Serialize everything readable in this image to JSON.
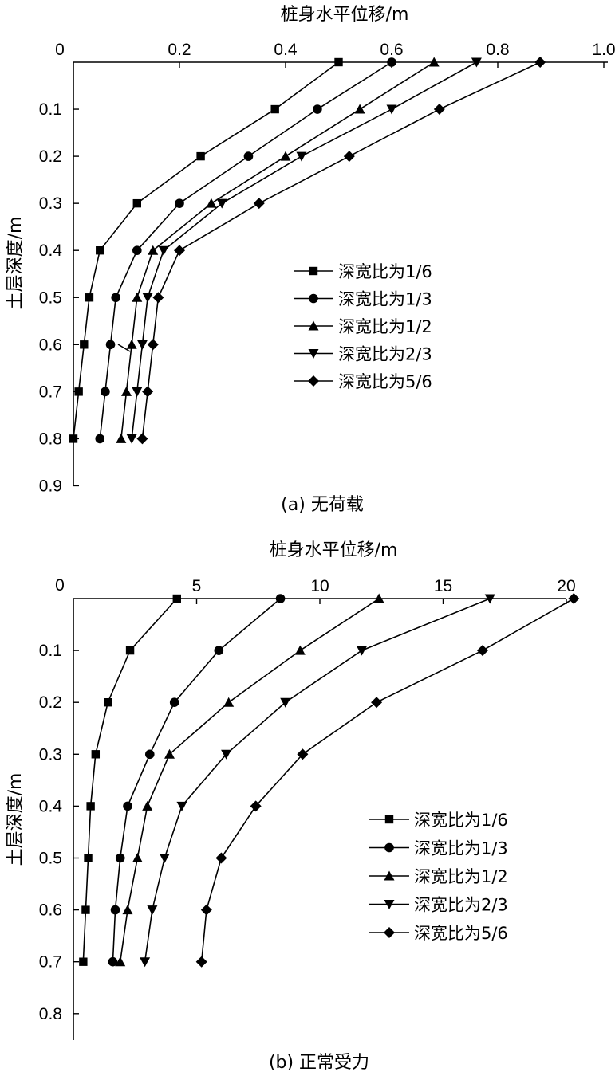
{
  "chart_data": [
    {
      "type": "line",
      "title": "(a) 无荷载",
      "xlabel": "桩身水平位移/m",
      "ylabel": "土层深度/m",
      "xlim": [
        0,
        1.0
      ],
      "ylim": [
        0,
        0.9
      ],
      "x_ticks": [
        "0",
        "0.2",
        "0.4",
        "0.6",
        "0.8",
        "1.0"
      ],
      "y_ticks": [
        "0.1",
        "0.2",
        "0.3",
        "0.4",
        "0.5",
        "0.6",
        "0.7",
        "0.8",
        "0.9"
      ],
      "x_origin_label": "0",
      "legend_position": "right",
      "series": [
        {
          "name": "深宽比为1/6",
          "marker": "square",
          "x": [
            0.5,
            0.38,
            0.24,
            0.12,
            0.05,
            0.03,
            0.02,
            0.01,
            0.0
          ],
          "y": [
            0,
            0.1,
            0.2,
            0.3,
            0.4,
            0.5,
            0.6,
            0.7,
            0.8
          ]
        },
        {
          "name": "深宽比为1/3",
          "marker": "circle",
          "x": [
            0.6,
            0.46,
            0.33,
            0.2,
            0.12,
            0.08,
            0.07,
            0.06,
            0.05
          ],
          "y": [
            0,
            0.1,
            0.2,
            0.3,
            0.4,
            0.5,
            0.6,
            0.7,
            0.8
          ]
        },
        {
          "name": "深宽比为1/2",
          "marker": "triangle-up",
          "x": [
            0.68,
            0.54,
            0.4,
            0.26,
            0.15,
            0.12,
            0.11,
            0.1,
            0.09
          ],
          "y": [
            0,
            0.1,
            0.2,
            0.3,
            0.4,
            0.5,
            0.6,
            0.7,
            0.8
          ]
        },
        {
          "name": "深宽比为2/3",
          "marker": "triangle-down",
          "x": [
            0.76,
            0.6,
            0.43,
            0.28,
            0.17,
            0.14,
            0.13,
            0.12,
            0.11
          ],
          "y": [
            0,
            0.1,
            0.2,
            0.3,
            0.4,
            0.5,
            0.6,
            0.7,
            0.8
          ]
        },
        {
          "name": "深宽比为5/6",
          "marker": "diamond",
          "x": [
            0.88,
            0.69,
            0.52,
            0.35,
            0.2,
            0.16,
            0.15,
            0.14,
            0.13
          ],
          "y": [
            0,
            0.1,
            0.2,
            0.3,
            0.4,
            0.5,
            0.6,
            0.7,
            0.8
          ]
        }
      ]
    },
    {
      "type": "line",
      "title": "(b) 正常受力",
      "xlabel": "桩身水平位移/m",
      "ylabel": "土层深度/m",
      "xlim": [
        0,
        20
      ],
      "ylim": [
        0,
        0.8
      ],
      "x_ticks": [
        "5",
        "10",
        "15",
        "20"
      ],
      "y_ticks": [
        "0.1",
        "0.2",
        "0.3",
        "0.4",
        "0.5",
        "0.6",
        "0.7",
        "0.8"
      ],
      "x_origin_label": "0",
      "legend_position": "right",
      "series": [
        {
          "name": "深宽比为1/6",
          "marker": "square",
          "x": [
            4.2,
            2.3,
            1.4,
            0.9,
            0.7,
            0.6,
            0.5,
            0.4
          ],
          "y": [
            0,
            0.1,
            0.2,
            0.3,
            0.4,
            0.5,
            0.6,
            0.7
          ]
        },
        {
          "name": "深宽比为1/3",
          "marker": "circle",
          "x": [
            8.4,
            5.9,
            4.1,
            3.1,
            2.2,
            1.9,
            1.7,
            1.6
          ],
          "y": [
            0,
            0.1,
            0.2,
            0.3,
            0.4,
            0.5,
            0.6,
            0.7
          ]
        },
        {
          "name": "深宽比为1/2",
          "marker": "triangle-up",
          "x": [
            12.4,
            9.2,
            6.3,
            3.9,
            3.0,
            2.6,
            2.2,
            1.9
          ],
          "y": [
            0,
            0.1,
            0.2,
            0.3,
            0.4,
            0.5,
            0.6,
            0.7
          ]
        },
        {
          "name": "深宽比为2/3",
          "marker": "triangle-down",
          "x": [
            16.9,
            11.7,
            8.6,
            6.2,
            4.4,
            3.7,
            3.2,
            2.9
          ],
          "y": [
            0,
            0.1,
            0.2,
            0.3,
            0.4,
            0.5,
            0.6,
            0.7
          ]
        },
        {
          "name": "深宽比为5/6",
          "marker": "diamond",
          "x": [
            20.3,
            16.6,
            12.3,
            9.3,
            7.4,
            6.0,
            5.4,
            5.2
          ],
          "y": [
            0,
            0.1,
            0.2,
            0.3,
            0.4,
            0.5,
            0.6,
            0.7
          ]
        }
      ]
    }
  ]
}
